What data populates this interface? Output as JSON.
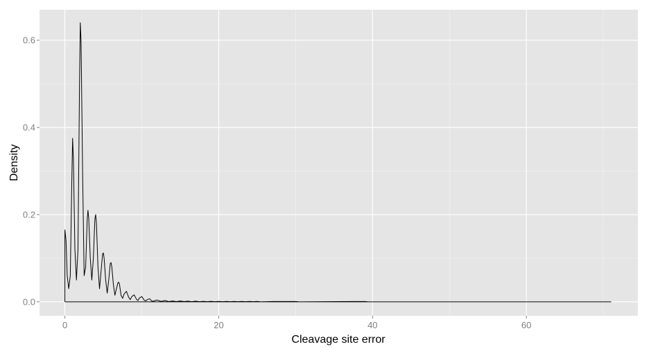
{
  "chart_data": {
    "type": "line",
    "title": "",
    "xlabel": "Cleavage site error",
    "ylabel": "Density",
    "xlim": [
      -3.3,
      74.5
    ],
    "ylim": [
      -0.032,
      0.67
    ],
    "x_ticks": [
      0,
      20,
      40,
      60
    ],
    "x_tick_labels": [
      "0",
      "20",
      "40",
      "60"
    ],
    "y_ticks": [
      0.0,
      0.2,
      0.4,
      0.6
    ],
    "y_tick_labels": [
      "0.0",
      "0.2",
      "0.4",
      "0.6"
    ],
    "x_minor_ticks": [
      10,
      30,
      50,
      70
    ],
    "y_minor_ticks": [
      0.1,
      0.3,
      0.5
    ],
    "grid": true,
    "legend": "none",
    "colors": {
      "panel": "#e5e5e5",
      "grid": "#ffffff",
      "line": "#000000",
      "tick_text": "#7f7f7f",
      "axis_title": "#000000"
    },
    "series": [
      {
        "values": [
          [
            0,
            0
          ],
          [
            0,
            0.165
          ],
          [
            0.15,
            0.14
          ],
          [
            0.3,
            0.06
          ],
          [
            0.5,
            0.03
          ],
          [
            0.7,
            0.06
          ],
          [
            0.9,
            0.28
          ],
          [
            1,
            0.375
          ],
          [
            1.1,
            0.33
          ],
          [
            1.3,
            0.12
          ],
          [
            1.5,
            0.05
          ],
          [
            1.7,
            0.12
          ],
          [
            1.9,
            0.5
          ],
          [
            2,
            0.64
          ],
          [
            2.1,
            0.6
          ],
          [
            2.3,
            0.3
          ],
          [
            2.5,
            0.06
          ],
          [
            2.7,
            0.08
          ],
          [
            2.9,
            0.19
          ],
          [
            3,
            0.21
          ],
          [
            3.1,
            0.19
          ],
          [
            3.3,
            0.1
          ],
          [
            3.5,
            0.05
          ],
          [
            3.7,
            0.1
          ],
          [
            3.9,
            0.19
          ],
          [
            4,
            0.2
          ],
          [
            4.1,
            0.18
          ],
          [
            4.3,
            0.08
          ],
          [
            4.5,
            0.03
          ],
          [
            4.7,
            0.07
          ],
          [
            4.9,
            0.11
          ],
          [
            5,
            0.112
          ],
          [
            5.1,
            0.1
          ],
          [
            5.3,
            0.05
          ],
          [
            5.5,
            0.02
          ],
          [
            5.7,
            0.05
          ],
          [
            5.9,
            0.088
          ],
          [
            6,
            0.09
          ],
          [
            6.1,
            0.08
          ],
          [
            6.3,
            0.04
          ],
          [
            6.5,
            0.015
          ],
          [
            6.7,
            0.03
          ],
          [
            6.9,
            0.044
          ],
          [
            7,
            0.045
          ],
          [
            7.1,
            0.04
          ],
          [
            7.3,
            0.015
          ],
          [
            7.5,
            0.008
          ],
          [
            7.7,
            0.018
          ],
          [
            8,
            0.024
          ],
          [
            8.3,
            0.01
          ],
          [
            8.5,
            0.005
          ],
          [
            8.7,
            0.012
          ],
          [
            9,
            0.016
          ],
          [
            9.3,
            0.006
          ],
          [
            9.5,
            0.003
          ],
          [
            9.7,
            0.009
          ],
          [
            10,
            0.012
          ],
          [
            10.3,
            0.004
          ],
          [
            10.5,
            0.002
          ],
          [
            10.7,
            0.005
          ],
          [
            11,
            0.007
          ],
          [
            11.3,
            0.002
          ],
          [
            11.5,
            0.001
          ],
          [
            11.7,
            0.003
          ],
          [
            12,
            0.004
          ],
          [
            12.5,
            0.001
          ],
          [
            13,
            0.003
          ],
          [
            13.5,
            0.0005
          ],
          [
            14,
            0.002
          ],
          [
            14.5,
            0.0005
          ],
          [
            15,
            0.002
          ],
          [
            15.5,
            0.0005
          ],
          [
            16,
            0.0015
          ],
          [
            16.5,
            0.0003
          ],
          [
            17,
            0.0015
          ],
          [
            17.5,
            0.0003
          ],
          [
            18,
            0.0012
          ],
          [
            18.5,
            0.0003
          ],
          [
            19,
            0.0012
          ],
          [
            19.5,
            0.0003
          ],
          [
            20,
            0.001
          ],
          [
            20.5,
            0.0003
          ],
          [
            21,
            0.001
          ],
          [
            21.5,
            0.0003
          ],
          [
            22,
            0.001
          ],
          [
            22.5,
            0.0003
          ],
          [
            23,
            0.001
          ],
          [
            23.5,
            0.0003
          ],
          [
            24,
            0.001
          ],
          [
            24.5,
            0.0003
          ],
          [
            25,
            0.001
          ],
          [
            25.5,
            0
          ],
          [
            27,
            0.0008
          ],
          [
            28,
            0.0008
          ],
          [
            29,
            0.0008
          ],
          [
            30,
            0.0008
          ],
          [
            30.5,
            0
          ],
          [
            38,
            0.0008
          ],
          [
            39,
            0.0008
          ],
          [
            39.5,
            0
          ],
          [
            71,
            0
          ],
          [
            0,
            0
          ]
        ]
      }
    ]
  }
}
